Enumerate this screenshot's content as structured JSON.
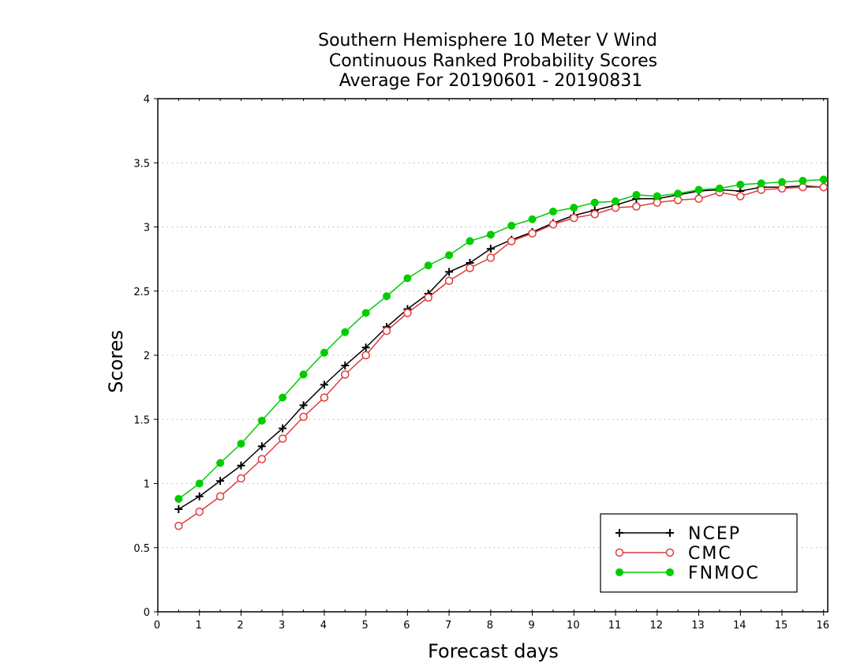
{
  "chart_data": {
    "type": "line",
    "title": [
      "Southern Hemisphere 10 Meter V Wind",
      "Continuous Ranked Probability Scores",
      "Average For 20190601 - 20190831"
    ],
    "xlabel": "Forecast days",
    "ylabel": "Scores",
    "xlim": [
      0,
      16.1
    ],
    "ylim": [
      0,
      4
    ],
    "xticks": [
      0,
      1,
      2,
      3,
      4,
      5,
      6,
      7,
      8,
      9,
      10,
      11,
      12,
      13,
      14,
      15,
      16
    ],
    "yticks": [
      0,
      0.5,
      1,
      1.5,
      2,
      2.5,
      3,
      3.5,
      4
    ],
    "ytick_labels": [
      "0",
      "0.5",
      "1",
      "1.5",
      "2",
      "2.5",
      "3",
      "3.5",
      "4"
    ],
    "grid": "horizontal-dotted",
    "legend_position": "bottom-right",
    "x": [
      0.5,
      1,
      1.5,
      2,
      2.5,
      3,
      3.5,
      4,
      4.5,
      5,
      5.5,
      6,
      6.5,
      7,
      7.5,
      8,
      8.5,
      9,
      9.5,
      10,
      10.5,
      11,
      11.5,
      12,
      12.5,
      13,
      13.5,
      14,
      14.5,
      15,
      15.5,
      16
    ],
    "series": [
      {
        "name": "NCEP",
        "color": "#000000",
        "marker": "plus",
        "values": [
          0.8,
          0.9,
          1.02,
          1.14,
          1.29,
          1.43,
          1.61,
          1.77,
          1.92,
          2.06,
          2.22,
          2.36,
          2.48,
          2.65,
          2.72,
          2.83,
          2.9,
          2.96,
          3.03,
          3.09,
          3.13,
          3.17,
          3.22,
          3.22,
          3.25,
          3.28,
          3.29,
          3.28,
          3.31,
          3.31,
          3.32,
          3.31
        ]
      },
      {
        "name": "CMC",
        "color": "#e03c3c",
        "marker": "open-circle",
        "values": [
          0.67,
          0.78,
          0.9,
          1.04,
          1.19,
          1.35,
          1.52,
          1.67,
          1.85,
          2.0,
          2.19,
          2.33,
          2.45,
          2.58,
          2.68,
          2.76,
          2.89,
          2.95,
          3.02,
          3.07,
          3.1,
          3.15,
          3.16,
          3.19,
          3.21,
          3.22,
          3.27,
          3.24,
          3.29,
          3.3,
          3.31,
          3.31
        ]
      },
      {
        "name": "FNMOC",
        "color": "#00cc00",
        "marker": "filled-circle",
        "values": [
          0.88,
          1.0,
          1.16,
          1.31,
          1.49,
          1.67,
          1.85,
          2.02,
          2.18,
          2.33,
          2.46,
          2.6,
          2.7,
          2.78,
          2.89,
          2.94,
          3.01,
          3.06,
          3.12,
          3.15,
          3.19,
          3.2,
          3.25,
          3.24,
          3.26,
          3.29,
          3.3,
          3.33,
          3.34,
          3.35,
          3.36,
          3.37
        ]
      }
    ]
  }
}
